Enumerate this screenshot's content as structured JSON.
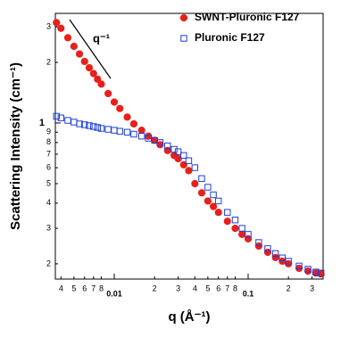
{
  "chart_data": {
    "type": "scatter",
    "x_label": "q (Å⁻¹)",
    "y_label": "Scattering Intensity (cm⁻¹)",
    "annotation": "q⁻¹",
    "log_x": true,
    "log_y": true,
    "legend": "top-right",
    "xlim": [
      0.00363,
      0.363
    ],
    "ylim": [
      0.168,
      3.5
    ],
    "xticks": [
      {
        "value": 0.004,
        "label": "4"
      },
      {
        "value": 0.005,
        "label": "5"
      },
      {
        "value": 0.006,
        "label": "6"
      },
      {
        "value": 0.007,
        "label": "7"
      },
      {
        "value": 0.008,
        "label": "8"
      },
      0.01,
      {
        "value": 0.02,
        "label": "2"
      },
      {
        "value": 0.03,
        "label": "3"
      },
      {
        "value": 0.04,
        "label": "4"
      },
      {
        "value": 0.05,
        "label": "5"
      },
      {
        "value": 0.06,
        "label": "6"
      },
      {
        "value": 0.07,
        "label": "7"
      },
      {
        "value": 0.08,
        "label": "8"
      },
      0.1,
      {
        "value": 0.2,
        "label": "2"
      },
      {
        "value": 0.3,
        "label": "3"
      }
    ],
    "yticks": [
      3,
      2,
      1,
      {
        "value": 0.9,
        "label": "9"
      },
      {
        "value": 0.8,
        "label": "8"
      },
      {
        "value": 0.7,
        "label": "7"
      },
      {
        "value": 0.6,
        "label": "6"
      },
      {
        "value": 0.5,
        "label": "5"
      },
      {
        "value": 0.4,
        "label": "4"
      },
      {
        "value": 0.3,
        "label": "3"
      },
      {
        "value": 0.2,
        "label": "2"
      }
    ],
    "x": [
      0.0037,
      0.004,
      0.0045,
      0.005,
      0.0055,
      0.006,
      0.0065,
      0.007,
      0.0075,
      0.008,
      0.009,
      0.01,
      0.011,
      0.0125,
      0.014,
      0.016,
      0.018,
      0.02,
      0.022,
      0.025,
      0.028,
      0.03,
      0.033,
      0.036,
      0.04,
      0.045,
      0.05,
      0.055,
      0.06,
      0.07,
      0.08,
      0.09,
      0.1,
      0.12,
      0.14,
      0.16,
      0.18,
      0.2,
      0.24,
      0.28,
      0.32,
      0.35
    ],
    "series": [
      {
        "name": "SWNT-Pluronic F127",
        "color": "#e8201c",
        "marker": "circle",
        "filled": true,
        "values": [
          3.15,
          2.95,
          2.65,
          2.4,
          2.2,
          2.02,
          1.88,
          1.76,
          1.65,
          1.56,
          1.4,
          1.27,
          1.18,
          1.07,
          0.99,
          0.92,
          0.86,
          0.82,
          0.78,
          0.73,
          0.69,
          0.665,
          0.62,
          0.58,
          0.5,
          0.45,
          0.41,
          0.385,
          0.36,
          0.325,
          0.3,
          0.28,
          0.266,
          0.245,
          0.228,
          0.215,
          0.206,
          0.2,
          0.19,
          0.184,
          0.18,
          0.178
        ]
      },
      {
        "name": "Pluronic F127",
        "color": "#1c3fd8",
        "marker": "square",
        "filled": false,
        "values": [
          1.08,
          1.06,
          1.03,
          1.01,
          0.99,
          0.98,
          0.97,
          0.96,
          0.95,
          0.94,
          0.93,
          0.92,
          0.91,
          0.9,
          0.88,
          0.86,
          0.84,
          0.82,
          0.8,
          0.77,
          0.74,
          0.72,
          0.69,
          0.65,
          0.6,
          0.53,
          0.48,
          0.44,
          0.41,
          0.36,
          0.33,
          0.3,
          0.28,
          0.255,
          0.238,
          0.225,
          0.214,
          0.206,
          0.195,
          0.188,
          0.182,
          0.18
        ]
      }
    ]
  }
}
